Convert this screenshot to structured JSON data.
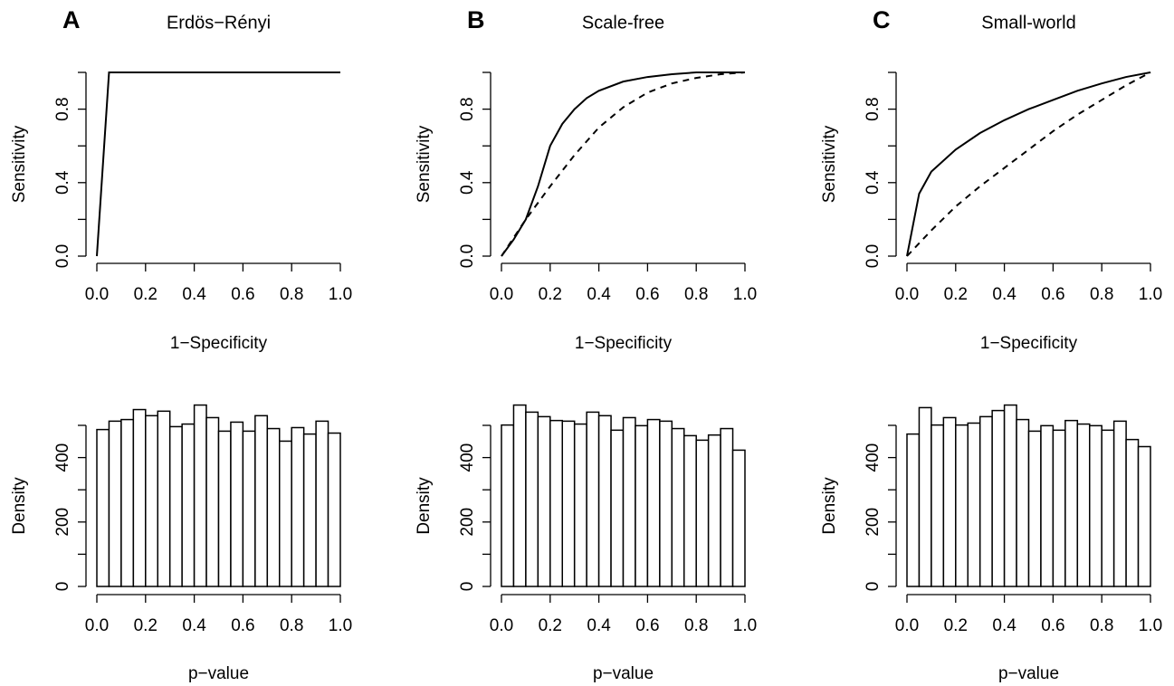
{
  "chart_data": [
    {
      "type": "line",
      "panel_label": "A",
      "title": "Erdös−Rényi",
      "x_label": "1−Specificity",
      "y_label": "Sensitivity",
      "xlim": [
        0,
        1
      ],
      "ylim": [
        0,
        1
      ],
      "xticks": [
        {
          "value": 0,
          "label": "0.0"
        },
        {
          "value": 0.2,
          "label": "0.2"
        },
        {
          "value": 0.4,
          "label": "0.4"
        },
        {
          "value": 0.6,
          "label": "0.6"
        },
        {
          "value": 0.8,
          "label": "0.8"
        },
        {
          "value": 1,
          "label": "1.0"
        }
      ],
      "yticks": [
        {
          "value": 0,
          "label": "0.0"
        },
        {
          "value": 0.4,
          "label": "0.4"
        },
        {
          "value": 0.8,
          "label": "0.8"
        }
      ],
      "minor_yticks": [
        0.2,
        0.6,
        1
      ],
      "series": [
        {
          "color": "#000000",
          "dash": false,
          "x": [
            0,
            0.05,
            1
          ],
          "values": [
            0,
            1,
            1
          ]
        }
      ]
    },
    {
      "type": "line",
      "panel_label": "B",
      "title": "Scale-free",
      "x_label": "1−Specificity",
      "y_label": "Sensitivity",
      "xlim": [
        0,
        1
      ],
      "ylim": [
        0,
        1
      ],
      "xticks": [
        {
          "value": 0,
          "label": "0.0"
        },
        {
          "value": 0.2,
          "label": "0.2"
        },
        {
          "value": 0.4,
          "label": "0.4"
        },
        {
          "value": 0.6,
          "label": "0.6"
        },
        {
          "value": 0.8,
          "label": "0.8"
        },
        {
          "value": 1,
          "label": "1.0"
        }
      ],
      "yticks": [
        {
          "value": 0,
          "label": "0.0"
        },
        {
          "value": 0.4,
          "label": "0.4"
        },
        {
          "value": 0.8,
          "label": "0.8"
        }
      ],
      "minor_yticks": [
        0.2,
        0.6,
        1
      ],
      "series": [
        {
          "color": "#000000",
          "dash": false,
          "x": [
            0,
            0.05,
            0.1,
            0.15,
            0.2,
            0.25,
            0.3,
            0.35,
            0.4,
            0.5,
            0.6,
            0.7,
            0.8,
            1
          ],
          "values": [
            0,
            0.09,
            0.2,
            0.38,
            0.6,
            0.72,
            0.8,
            0.86,
            0.9,
            0.95,
            0.975,
            0.99,
            1,
            1
          ]
        },
        {
          "color": "#000000",
          "dash": true,
          "x": [
            0,
            0.1,
            0.2,
            0.3,
            0.4,
            0.5,
            0.6,
            0.7,
            0.8,
            0.9,
            1
          ],
          "values": [
            0,
            0.2,
            0.38,
            0.55,
            0.7,
            0.81,
            0.89,
            0.94,
            0.97,
            0.99,
            1
          ]
        }
      ]
    },
    {
      "type": "line",
      "panel_label": "C",
      "title": "Small-world",
      "x_label": "1−Specificity",
      "y_label": "Sensitivity",
      "xlim": [
        0,
        1
      ],
      "ylim": [
        0,
        1
      ],
      "xticks": [
        {
          "value": 0,
          "label": "0.0"
        },
        {
          "value": 0.2,
          "label": "0.2"
        },
        {
          "value": 0.4,
          "label": "0.4"
        },
        {
          "value": 0.6,
          "label": "0.6"
        },
        {
          "value": 0.8,
          "label": "0.8"
        },
        {
          "value": 1,
          "label": "1.0"
        }
      ],
      "yticks": [
        {
          "value": 0,
          "label": "0.0"
        },
        {
          "value": 0.4,
          "label": "0.4"
        },
        {
          "value": 0.8,
          "label": "0.8"
        }
      ],
      "minor_yticks": [
        0.2,
        0.6,
        1
      ],
      "series": [
        {
          "color": "#000000",
          "dash": false,
          "x": [
            0,
            0.05,
            0.1,
            0.2,
            0.3,
            0.4,
            0.5,
            0.6,
            0.7,
            0.8,
            0.9,
            1
          ],
          "values": [
            0,
            0.34,
            0.46,
            0.58,
            0.67,
            0.74,
            0.8,
            0.85,
            0.9,
            0.94,
            0.975,
            1
          ]
        },
        {
          "color": "#000000",
          "dash": true,
          "x": [
            0,
            0.1,
            0.2,
            0.3,
            0.4,
            0.5,
            0.6,
            0.7,
            0.8,
            0.9,
            1
          ],
          "values": [
            0,
            0.14,
            0.27,
            0.38,
            0.48,
            0.58,
            0.68,
            0.77,
            0.85,
            0.93,
            1
          ]
        }
      ]
    },
    {
      "type": "histogram",
      "x_label": "p−value",
      "y_label": "Density",
      "color": "#ffffff",
      "edge_color": "#000000",
      "xlim": [
        0,
        1
      ],
      "ylim": [
        0,
        500
      ],
      "xticks": [
        {
          "value": 0,
          "label": "0.0"
        },
        {
          "value": 0.2,
          "label": "0.2"
        },
        {
          "value": 0.4,
          "label": "0.4"
        },
        {
          "value": 0.6,
          "label": "0.6"
        },
        {
          "value": 0.8,
          "label": "0.8"
        },
        {
          "value": 1,
          "label": "1.0"
        }
      ],
      "yticks": [
        0,
        200,
        400
      ],
      "minor_yticks": [
        100,
        300,
        500
      ],
      "bins": [
        0,
        0.05,
        0.1,
        0.15,
        0.2,
        0.25,
        0.3,
        0.35,
        0.4,
        0.45,
        0.5,
        0.55,
        0.6,
        0.65,
        0.7,
        0.75,
        0.8,
        0.85,
        0.9,
        0.95,
        1
      ],
      "values": [
        487,
        513,
        518,
        549,
        530,
        544,
        496,
        504,
        563,
        524,
        482,
        510,
        482,
        530,
        490,
        451,
        493,
        473,
        513,
        476
      ]
    },
    {
      "type": "histogram",
      "x_label": "p−value",
      "y_label": "Density",
      "color": "#ffffff",
      "edge_color": "#000000",
      "xlim": [
        0,
        1
      ],
      "ylim": [
        0,
        500
      ],
      "xticks": [
        {
          "value": 0,
          "label": "0.0"
        },
        {
          "value": 0.2,
          "label": "0.2"
        },
        {
          "value": 0.4,
          "label": "0.4"
        },
        {
          "value": 0.6,
          "label": "0.6"
        },
        {
          "value": 0.8,
          "label": "0.8"
        },
        {
          "value": 1,
          "label": "1.0"
        }
      ],
      "yticks": [
        0,
        200,
        400
      ],
      "minor_yticks": [
        100,
        300,
        500
      ],
      "bins": [
        0,
        0.05,
        0.1,
        0.15,
        0.2,
        0.25,
        0.3,
        0.35,
        0.4,
        0.45,
        0.5,
        0.55,
        0.6,
        0.65,
        0.7,
        0.75,
        0.8,
        0.85,
        0.9,
        0.95,
        1
      ],
      "values": [
        501,
        563,
        541,
        527,
        515,
        513,
        504,
        541,
        530,
        485,
        524,
        499,
        518,
        513,
        490,
        468,
        454,
        470,
        490,
        423
      ]
    },
    {
      "type": "histogram",
      "x_label": "p−value",
      "y_label": "Density",
      "color": "#ffffff",
      "edge_color": "#000000",
      "xlim": [
        0,
        1
      ],
      "ylim": [
        0,
        500
      ],
      "xticks": [
        {
          "value": 0,
          "label": "0.0"
        },
        {
          "value": 0.2,
          "label": "0.2"
        },
        {
          "value": 0.4,
          "label": "0.4"
        },
        {
          "value": 0.6,
          "label": "0.6"
        },
        {
          "value": 0.8,
          "label": "0.8"
        },
        {
          "value": 1,
          "label": "1.0"
        }
      ],
      "yticks": [
        0,
        200,
        400
      ],
      "minor_yticks": [
        100,
        300,
        500
      ],
      "bins": [
        0,
        0.05,
        0.1,
        0.15,
        0.2,
        0.25,
        0.3,
        0.35,
        0.4,
        0.45,
        0.5,
        0.55,
        0.6,
        0.65,
        0.7,
        0.75,
        0.8,
        0.85,
        0.9,
        0.95,
        1
      ],
      "values": [
        473,
        555,
        501,
        524,
        501,
        507,
        527,
        546,
        563,
        518,
        482,
        499,
        485,
        515,
        504,
        499,
        485,
        513,
        456,
        434
      ]
    }
  ]
}
